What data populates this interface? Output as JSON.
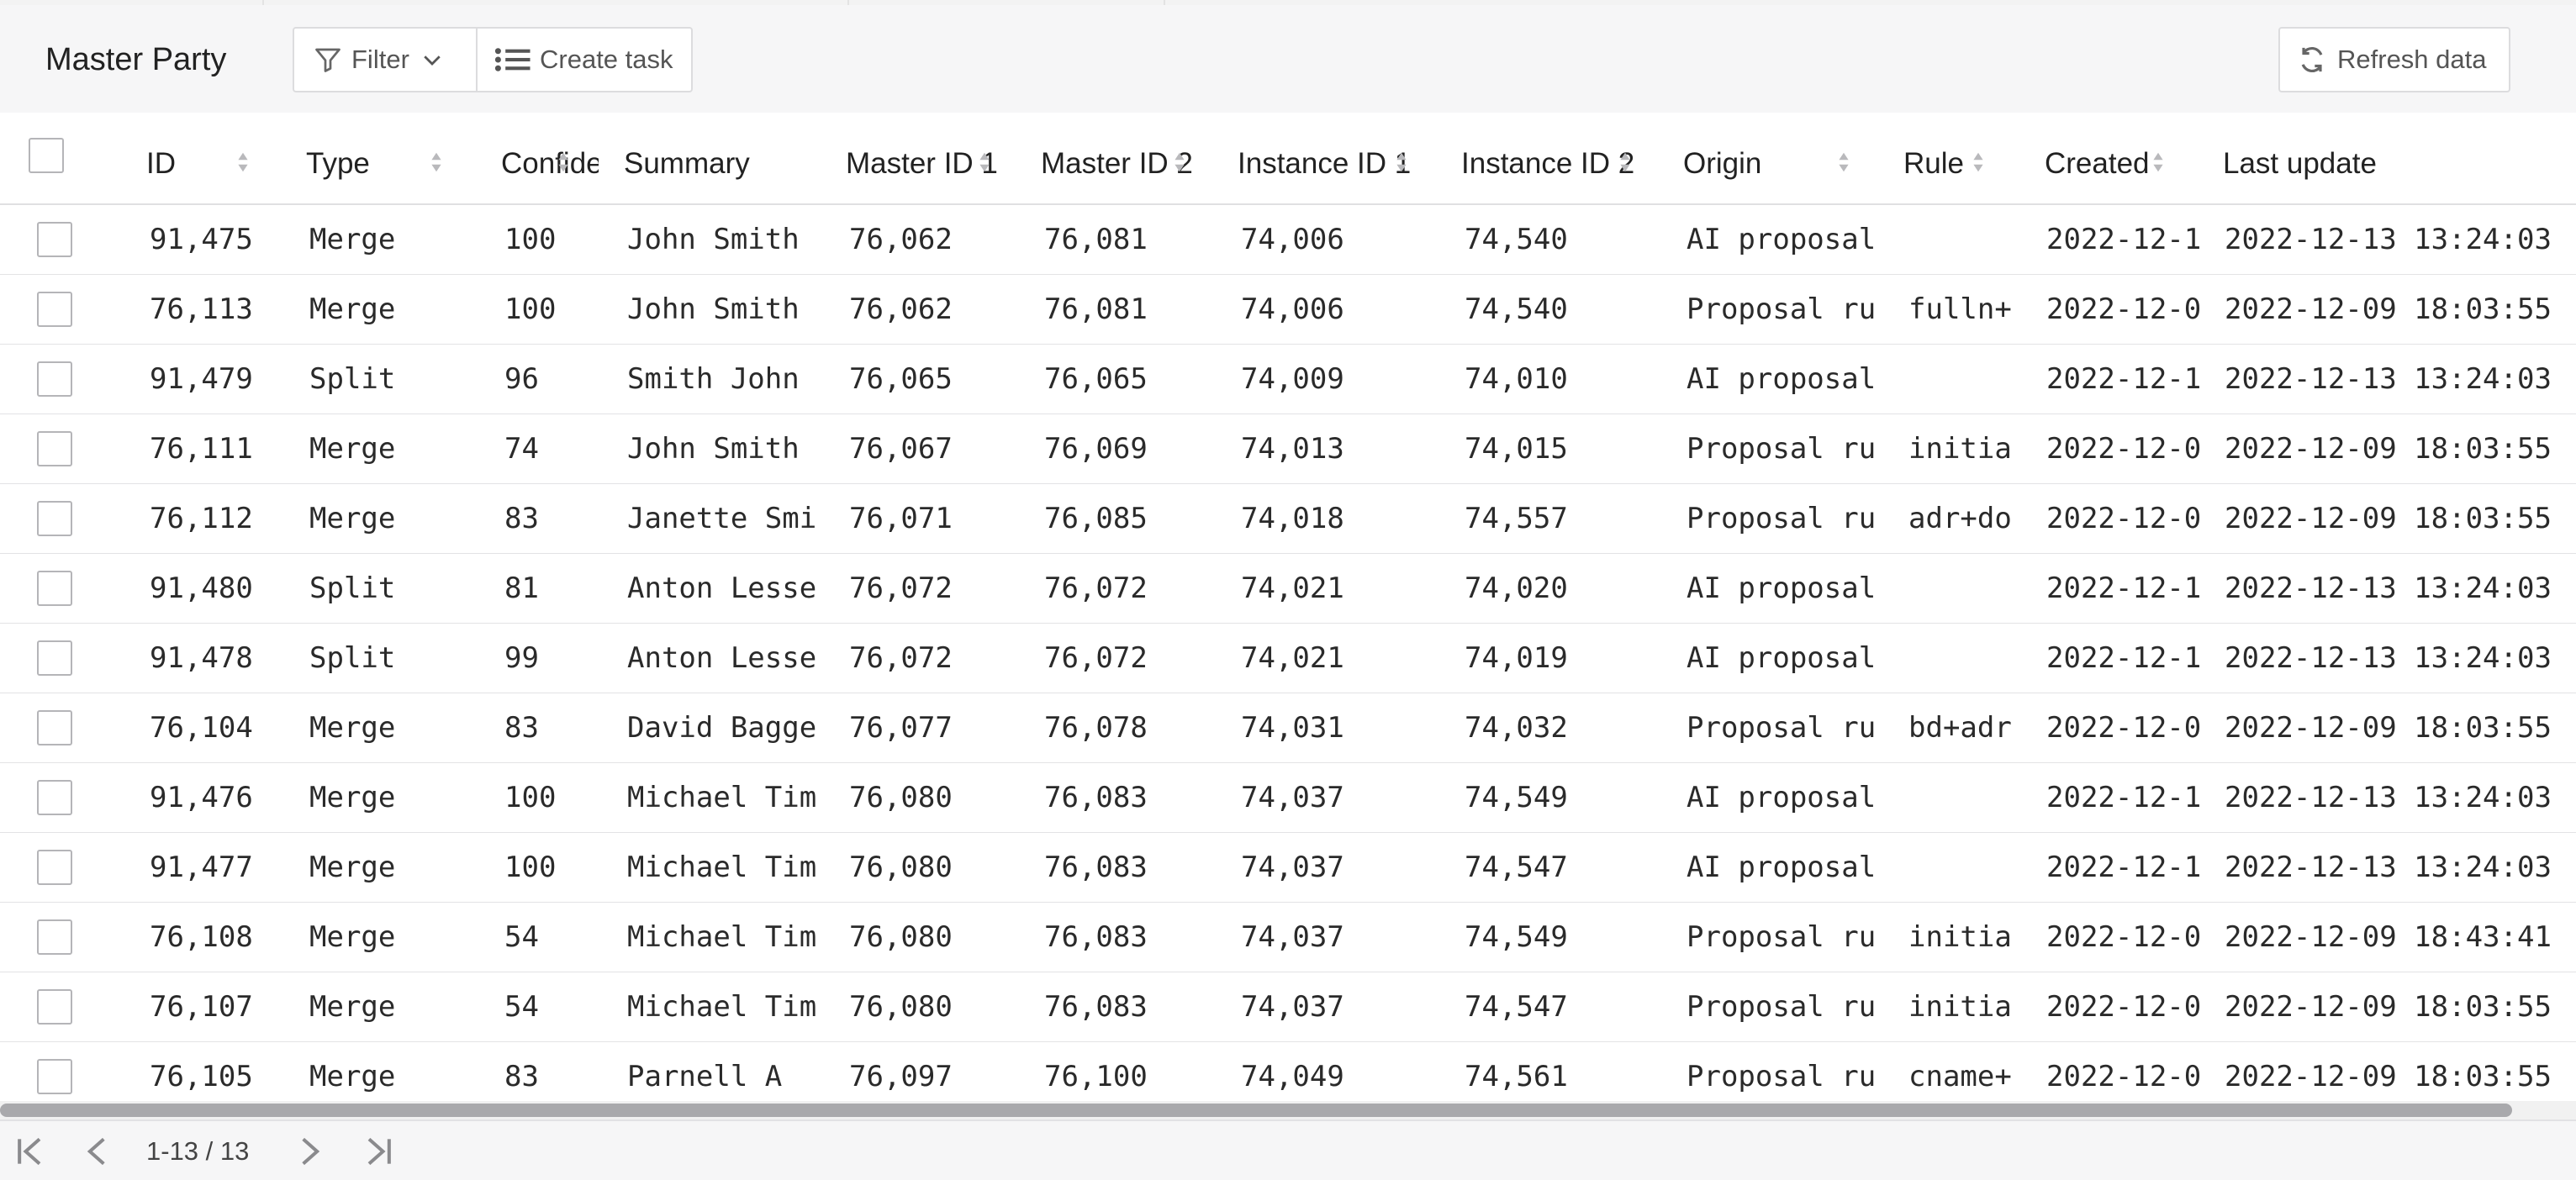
{
  "toolbar": {
    "title": "Master Party",
    "filter_label": "Filter",
    "create_task_label": "Create task",
    "refresh_label": "Refresh data"
  },
  "table": {
    "columns": [
      {
        "key": "id",
        "label": "ID"
      },
      {
        "key": "type",
        "label": "Type"
      },
      {
        "key": "confidence",
        "label": "Confide"
      },
      {
        "key": "summary",
        "label": "Summary"
      },
      {
        "key": "master_id_1",
        "label": "Master ID 1"
      },
      {
        "key": "master_id_2",
        "label": "Master ID 2"
      },
      {
        "key": "instance_id_1",
        "label": "Instance ID 1"
      },
      {
        "key": "instance_id_2",
        "label": "Instance ID 2"
      },
      {
        "key": "origin",
        "label": "Origin"
      },
      {
        "key": "rule",
        "label": "Rule"
      },
      {
        "key": "created",
        "label": "Created"
      },
      {
        "key": "last_update",
        "label": "Last update"
      }
    ],
    "rows": [
      {
        "id": "91,475",
        "type": "Merge",
        "confidence": "100",
        "summary": "John Smith",
        "master_id_1": "76,062",
        "master_id_2": "76,081",
        "instance_id_1": "74,006",
        "instance_id_2": "74,540",
        "origin": "AI proposal",
        "rule": "",
        "created": "2022-12-1",
        "last_update": "2022-12-13 13:24:03"
      },
      {
        "id": "76,113",
        "type": "Merge",
        "confidence": "100",
        "summary": "John Smith",
        "master_id_1": "76,062",
        "master_id_2": "76,081",
        "instance_id_1": "74,006",
        "instance_id_2": "74,540",
        "origin": "Proposal ru",
        "rule": "fulln+",
        "created": "2022-12-0",
        "last_update": "2022-12-09 18:03:55"
      },
      {
        "id": "91,479",
        "type": "Split",
        "confidence": "96",
        "summary": "Smith John",
        "master_id_1": "76,065",
        "master_id_2": "76,065",
        "instance_id_1": "74,009",
        "instance_id_2": "74,010",
        "origin": "AI proposal",
        "rule": "",
        "created": "2022-12-1",
        "last_update": "2022-12-13 13:24:03"
      },
      {
        "id": "76,111",
        "type": "Merge",
        "confidence": "74",
        "summary": "John Smith",
        "master_id_1": "76,067",
        "master_id_2": "76,069",
        "instance_id_1": "74,013",
        "instance_id_2": "74,015",
        "origin": "Proposal ru",
        "rule": "initia",
        "created": "2022-12-0",
        "last_update": "2022-12-09 18:03:55"
      },
      {
        "id": "76,112",
        "type": "Merge",
        "confidence": "83",
        "summary": "Janette Smi",
        "master_id_1": "76,071",
        "master_id_2": "76,085",
        "instance_id_1": "74,018",
        "instance_id_2": "74,557",
        "origin": "Proposal ru",
        "rule": "adr+do",
        "created": "2022-12-0",
        "last_update": "2022-12-09 18:03:55"
      },
      {
        "id": "91,480",
        "type": "Split",
        "confidence": "81",
        "summary": "Anton Lesse",
        "master_id_1": "76,072",
        "master_id_2": "76,072",
        "instance_id_1": "74,021",
        "instance_id_2": "74,020",
        "origin": "AI proposal",
        "rule": "",
        "created": "2022-12-1",
        "last_update": "2022-12-13 13:24:03"
      },
      {
        "id": "91,478",
        "type": "Split",
        "confidence": "99",
        "summary": "Anton Lesse",
        "master_id_1": "76,072",
        "master_id_2": "76,072",
        "instance_id_1": "74,021",
        "instance_id_2": "74,019",
        "origin": "AI proposal",
        "rule": "",
        "created": "2022-12-1",
        "last_update": "2022-12-13 13:24:03"
      },
      {
        "id": "76,104",
        "type": "Merge",
        "confidence": "83",
        "summary": "David Bagge",
        "master_id_1": "76,077",
        "master_id_2": "76,078",
        "instance_id_1": "74,031",
        "instance_id_2": "74,032",
        "origin": "Proposal ru",
        "rule": "bd+adr",
        "created": "2022-12-0",
        "last_update": "2022-12-09 18:03:55"
      },
      {
        "id": "91,476",
        "type": "Merge",
        "confidence": "100",
        "summary": "Michael Tim",
        "master_id_1": "76,080",
        "master_id_2": "76,083",
        "instance_id_1": "74,037",
        "instance_id_2": "74,549",
        "origin": "AI proposal",
        "rule": "",
        "created": "2022-12-1",
        "last_update": "2022-12-13 13:24:03"
      },
      {
        "id": "91,477",
        "type": "Merge",
        "confidence": "100",
        "summary": "Michael Tim",
        "master_id_1": "76,080",
        "master_id_2": "76,083",
        "instance_id_1": "74,037",
        "instance_id_2": "74,547",
        "origin": "AI proposal",
        "rule": "",
        "created": "2022-12-1",
        "last_update": "2022-12-13 13:24:03"
      },
      {
        "id": "76,108",
        "type": "Merge",
        "confidence": "54",
        "summary": "Michael Tim",
        "master_id_1": "76,080",
        "master_id_2": "76,083",
        "instance_id_1": "74,037",
        "instance_id_2": "74,549",
        "origin": "Proposal ru",
        "rule": "initia",
        "created": "2022-12-0",
        "last_update": "2022-12-09 18:43:41"
      },
      {
        "id": "76,107",
        "type": "Merge",
        "confidence": "54",
        "summary": "Michael Tim",
        "master_id_1": "76,080",
        "master_id_2": "76,083",
        "instance_id_1": "74,037",
        "instance_id_2": "74,547",
        "origin": "Proposal ru",
        "rule": "initia",
        "created": "2022-12-0",
        "last_update": "2022-12-09 18:03:55"
      },
      {
        "id": "76,105",
        "type": "Merge",
        "confidence": "83",
        "summary": "Parnell A",
        "master_id_1": "76,097",
        "master_id_2": "76,100",
        "instance_id_1": "74,049",
        "instance_id_2": "74,561",
        "origin": "Proposal ru",
        "rule": "cname+",
        "created": "2022-12-0",
        "last_update": "2022-12-09 18:03:55"
      }
    ]
  },
  "pagination": {
    "info": "1-13 / 13"
  },
  "icons": {
    "filter": "filter-icon",
    "create_task": "list-icon",
    "refresh": "refresh-icon",
    "sort": "sort-icon",
    "first_page": "first-page-icon",
    "prev_page": "prev-page-icon",
    "next_page": "next-page-icon",
    "last_page": "last-page-icon"
  },
  "colors": {
    "toolbar_bg": "#f6f6f7",
    "border": "#e2e2e4",
    "scroll_thumb": "#a9a9ac"
  }
}
